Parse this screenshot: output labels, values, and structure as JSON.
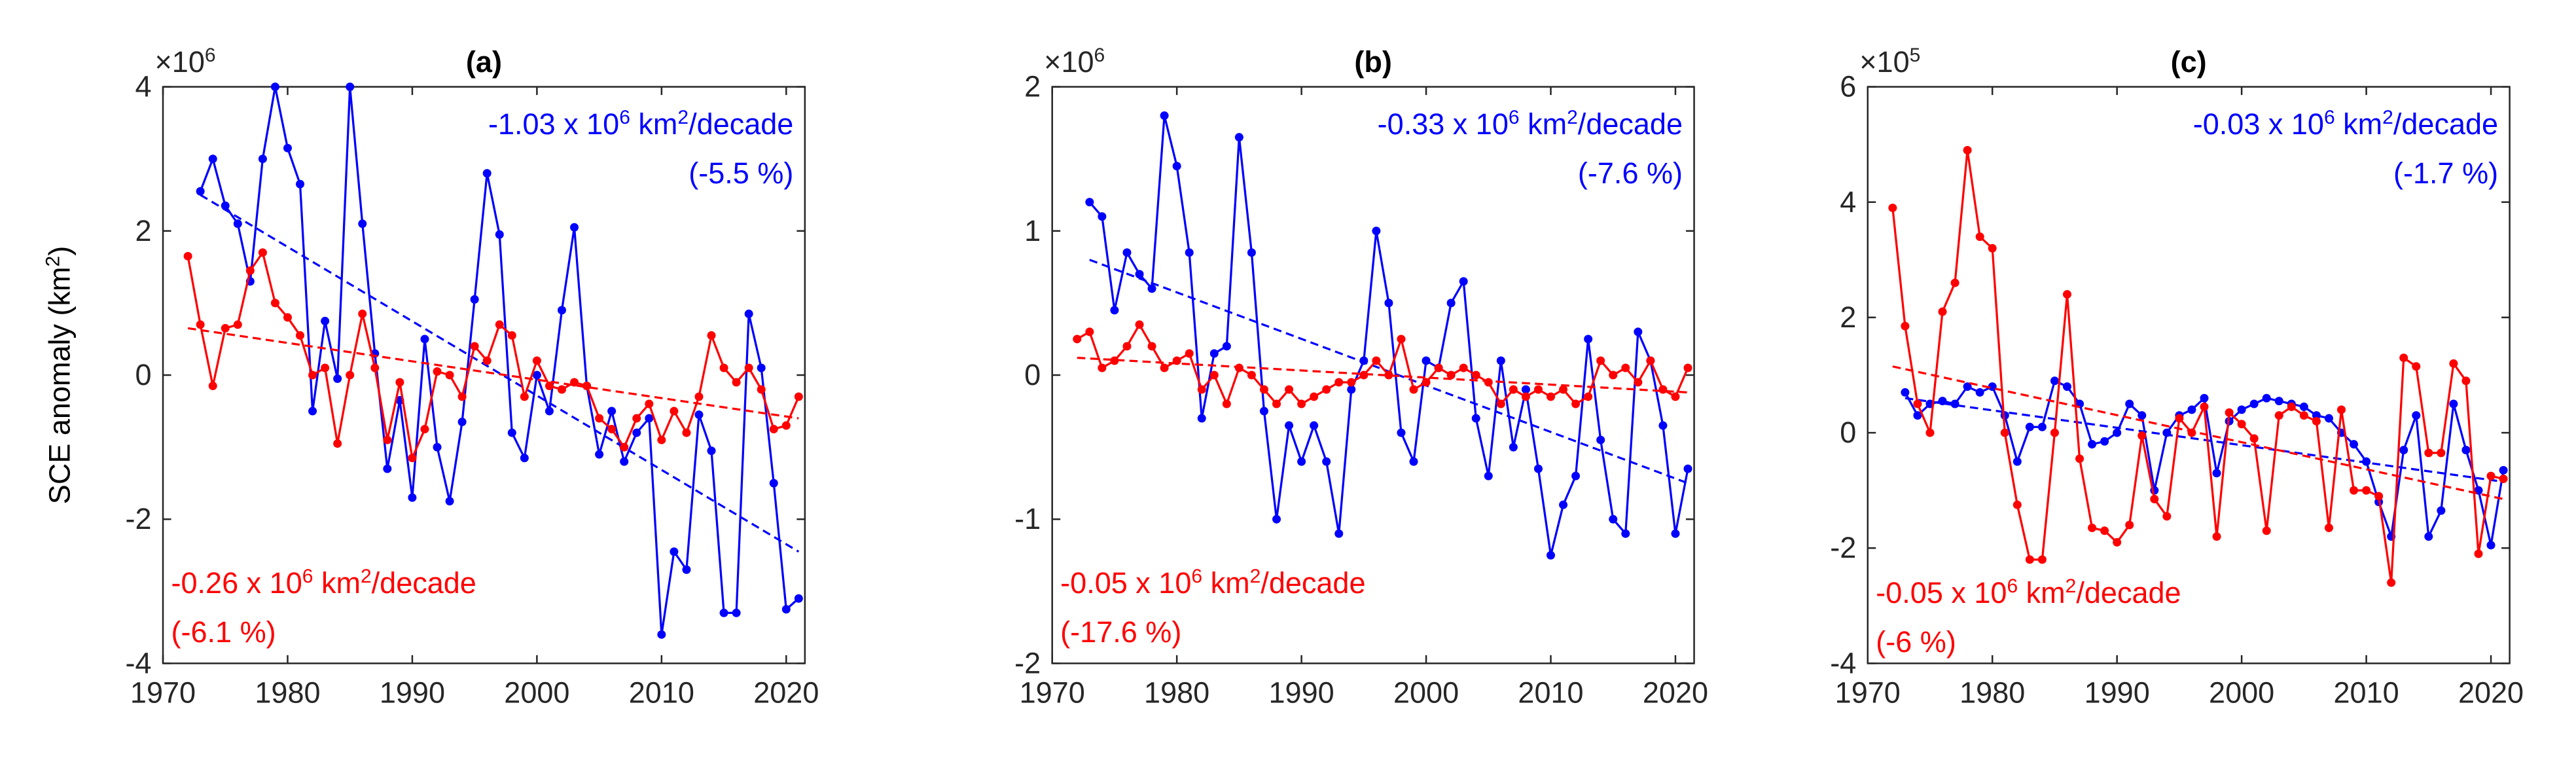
{
  "chart_data": [
    {
      "type": "line",
      "title": "(a)",
      "scale_base": "×10",
      "scale_exp": "6",
      "ylabel": [
        "SCE anomaly (km",
        "2",
        ")"
      ],
      "xlim": [
        1970,
        2021.5
      ],
      "xticks": [
        1970,
        1980,
        1990,
        2000,
        2010,
        2020
      ],
      "ylim": [
        -4,
        4
      ],
      "yticks": [
        -4,
        -2,
        0,
        2,
        4
      ],
      "x": [
        1972,
        1973,
        1974,
        1975,
        1976,
        1977,
        1978,
        1979,
        1980,
        1981,
        1982,
        1983,
        1984,
        1985,
        1986,
        1987,
        1988,
        1989,
        1990,
        1991,
        1992,
        1993,
        1994,
        1995,
        1996,
        1997,
        1998,
        1999,
        2000,
        2001,
        2002,
        2003,
        2004,
        2005,
        2006,
        2007,
        2008,
        2009,
        2010,
        2011,
        2012,
        2013,
        2014,
        2015,
        2016,
        2017,
        2018,
        2019,
        2020,
        2021
      ],
      "series": [
        {
          "color": "#0000ff",
          "values": [
            null,
            2.55,
            3.0,
            2.35,
            2.1,
            1.3,
            3.0,
            4.0,
            3.15,
            2.65,
            -0.5,
            0.75,
            -0.05,
            4.0,
            2.1,
            0.3,
            -1.3,
            -0.35,
            -1.7,
            0.5,
            -1.0,
            -1.75,
            -0.65,
            1.05,
            2.8,
            1.95,
            -0.8,
            -1.15,
            0.0,
            -0.5,
            0.9,
            2.05,
            -0.15,
            -1.1,
            -0.5,
            -1.2,
            -0.8,
            -0.6,
            -3.6,
            -2.45,
            -2.7,
            -0.55,
            -1.05,
            -3.3,
            -3.3,
            0.85,
            0.1,
            -1.5,
            -3.25,
            -3.1
          ],
          "trend": {
            "x": [
              1973,
              2021
            ],
            "values": [
              2.5,
              -2.45
            ]
          },
          "annotation": {
            "text": [
              "-1.03 x 10",
              "6",
              " km",
              "2",
              "/decade"
            ],
            "pct": "(-5.5 %)"
          }
        },
        {
          "color": "#ff0000",
          "values": [
            1.65,
            0.7,
            -0.15,
            0.65,
            0.7,
            1.45,
            1.7,
            1.0,
            0.8,
            0.55,
            0.0,
            0.1,
            -0.95,
            0.0,
            0.85,
            0.1,
            -0.9,
            -0.1,
            -1.15,
            -0.75,
            0.05,
            0.0,
            -0.3,
            0.4,
            0.2,
            0.7,
            0.55,
            -0.3,
            0.2,
            -0.15,
            -0.2,
            -0.1,
            -0.15,
            -0.6,
            -0.75,
            -1.0,
            -0.6,
            -0.4,
            -0.9,
            -0.5,
            -0.8,
            -0.3,
            0.55,
            0.1,
            -0.1,
            0.1,
            -0.2,
            -0.75,
            -0.7,
            -0.3
          ],
          "trend": {
            "x": [
              1972,
              2021
            ],
            "values": [
              0.65,
              -0.6
            ]
          },
          "annotation": {
            "text": [
              "-0.26 x 10",
              "6",
              " km",
              "2",
              "/decade"
            ],
            "pct": "(-6.1 %)"
          }
        }
      ]
    },
    {
      "type": "line",
      "title": "(b)",
      "scale_base": "×10",
      "scale_exp": "6",
      "xlim": [
        1970,
        2021.5
      ],
      "xticks": [
        1970,
        1980,
        1990,
        2000,
        2010,
        2020
      ],
      "ylim": [
        -2,
        2
      ],
      "yticks": [
        -2,
        -1,
        0,
        1,
        2
      ],
      "x": [
        1972,
        1973,
        1974,
        1975,
        1976,
        1977,
        1978,
        1979,
        1980,
        1981,
        1982,
        1983,
        1984,
        1985,
        1986,
        1987,
        1988,
        1989,
        1990,
        1991,
        1992,
        1993,
        1994,
        1995,
        1996,
        1997,
        1998,
        1999,
        2000,
        2001,
        2002,
        2003,
        2004,
        2005,
        2006,
        2007,
        2008,
        2009,
        2010,
        2011,
        2012,
        2013,
        2014,
        2015,
        2016,
        2017,
        2018,
        2019,
        2020,
        2021
      ],
      "series": [
        {
          "color": "#0000ff",
          "values": [
            null,
            1.2,
            1.1,
            0.45,
            0.85,
            0.7,
            0.6,
            1.8,
            1.45,
            0.85,
            -0.3,
            0.15,
            0.2,
            1.65,
            0.85,
            -0.25,
            -1.0,
            -0.35,
            -0.6,
            -0.35,
            -0.6,
            -1.1,
            -0.1,
            0.1,
            1.0,
            0.5,
            -0.4,
            -0.6,
            0.1,
            0.05,
            0.5,
            0.65,
            -0.3,
            -0.7,
            0.1,
            -0.5,
            -0.1,
            -0.65,
            -1.25,
            -0.9,
            -0.7,
            0.25,
            -0.45,
            -1.0,
            -1.1,
            0.3,
            0.1,
            -0.35,
            -1.1,
            -0.65
          ],
          "trend": {
            "x": [
              1973,
              2021
            ],
            "values": [
              0.8,
              -0.75
            ]
          },
          "annotation": {
            "text": [
              "-0.33 x 10",
              "6",
              " km",
              "2",
              "/decade"
            ],
            "pct": "(-7.6 %)"
          }
        },
        {
          "color": "#ff0000",
          "values": [
            0.25,
            0.3,
            0.05,
            0.1,
            0.2,
            0.35,
            0.2,
            0.05,
            0.1,
            0.15,
            -0.1,
            0.0,
            -0.2,
            0.05,
            0.0,
            -0.1,
            -0.2,
            -0.1,
            -0.2,
            -0.15,
            -0.1,
            -0.05,
            -0.05,
            0.0,
            0.1,
            0.0,
            0.25,
            -0.1,
            -0.05,
            0.05,
            0.0,
            0.05,
            0.0,
            -0.05,
            -0.2,
            -0.1,
            -0.15,
            -0.1,
            -0.15,
            -0.1,
            -0.2,
            -0.15,
            0.1,
            0.0,
            0.05,
            -0.05,
            0.1,
            -0.1,
            -0.15,
            0.05
          ],
          "trend": {
            "x": [
              1972,
              2021
            ],
            "values": [
              0.12,
              -0.12
            ]
          },
          "annotation": {
            "text": [
              "-0.05 x 10",
              "6",
              " km",
              "2",
              "/decade"
            ],
            "pct": "(-17.6 %)"
          }
        }
      ]
    },
    {
      "type": "line",
      "title": "(c)",
      "scale_base": "×10",
      "scale_exp": "5",
      "xlim": [
        1970,
        2021.5
      ],
      "xticks": [
        1970,
        1980,
        1990,
        2000,
        2010,
        2020
      ],
      "ylim": [
        -4,
        6
      ],
      "yticks": [
        -4,
        -2,
        0,
        2,
        4,
        6
      ],
      "x": [
        1972,
        1973,
        1974,
        1975,
        1976,
        1977,
        1978,
        1979,
        1980,
        1981,
        1982,
        1983,
        1984,
        1985,
        1986,
        1987,
        1988,
        1989,
        1990,
        1991,
        1992,
        1993,
        1994,
        1995,
        1996,
        1997,
        1998,
        1999,
        2000,
        2001,
        2002,
        2003,
        2004,
        2005,
        2006,
        2007,
        2008,
        2009,
        2010,
        2011,
        2012,
        2013,
        2014,
        2015,
        2016,
        2017,
        2018,
        2019,
        2020,
        2021
      ],
      "series": [
        {
          "color": "#0000ff",
          "values": [
            null,
            0.7,
            0.3,
            0.5,
            0.55,
            0.5,
            0.8,
            0.7,
            0.8,
            0.3,
            -0.5,
            0.1,
            0.1,
            0.9,
            0.8,
            0.5,
            -0.2,
            -0.15,
            0.0,
            0.5,
            0.3,
            -1.0,
            0.0,
            0.3,
            0.4,
            0.6,
            -0.7,
            0.2,
            0.4,
            0.5,
            0.6,
            0.55,
            0.5,
            0.45,
            0.3,
            0.25,
            0.0,
            -0.2,
            -0.5,
            -1.2,
            -1.8,
            -0.3,
            0.3,
            -1.8,
            -1.35,
            0.5,
            -0.3,
            -1.0,
            -1.95,
            -0.65
          ],
          "trend": {
            "x": [
              1973,
              2021
            ],
            "values": [
              0.6,
              -0.85
            ]
          },
          "annotation": {
            "text": [
              "-0.03 x 10",
              "6",
              " km",
              "2",
              "/decade"
            ],
            "pct": "(-1.7 %)"
          }
        },
        {
          "color": "#ff0000",
          "values": [
            3.9,
            1.85,
            0.5,
            0.0,
            2.1,
            2.6,
            4.9,
            3.4,
            3.2,
            0.0,
            -1.25,
            -2.2,
            -2.2,
            0.0,
            2.4,
            -0.45,
            -1.65,
            -1.7,
            -1.9,
            -1.6,
            -0.05,
            -1.15,
            -1.45,
            0.25,
            0.0,
            0.45,
            -1.8,
            0.35,
            0.15,
            -0.1,
            -1.7,
            0.3,
            0.45,
            0.3,
            0.2,
            -1.65,
            0.4,
            -1.0,
            -1.0,
            -1.1,
            -2.6,
            1.3,
            1.15,
            -0.35,
            -0.35,
            1.2,
            0.9,
            -2.1,
            -0.75,
            -0.8
          ],
          "trend": {
            "x": [
              1972,
              2021
            ],
            "values": [
              1.15,
              -1.15
            ]
          },
          "annotation": {
            "text": [
              "-0.05 x 10",
              "6",
              " km",
              "2",
              "/decade"
            ],
            "pct": "(-6 %)"
          }
        }
      ]
    }
  ]
}
